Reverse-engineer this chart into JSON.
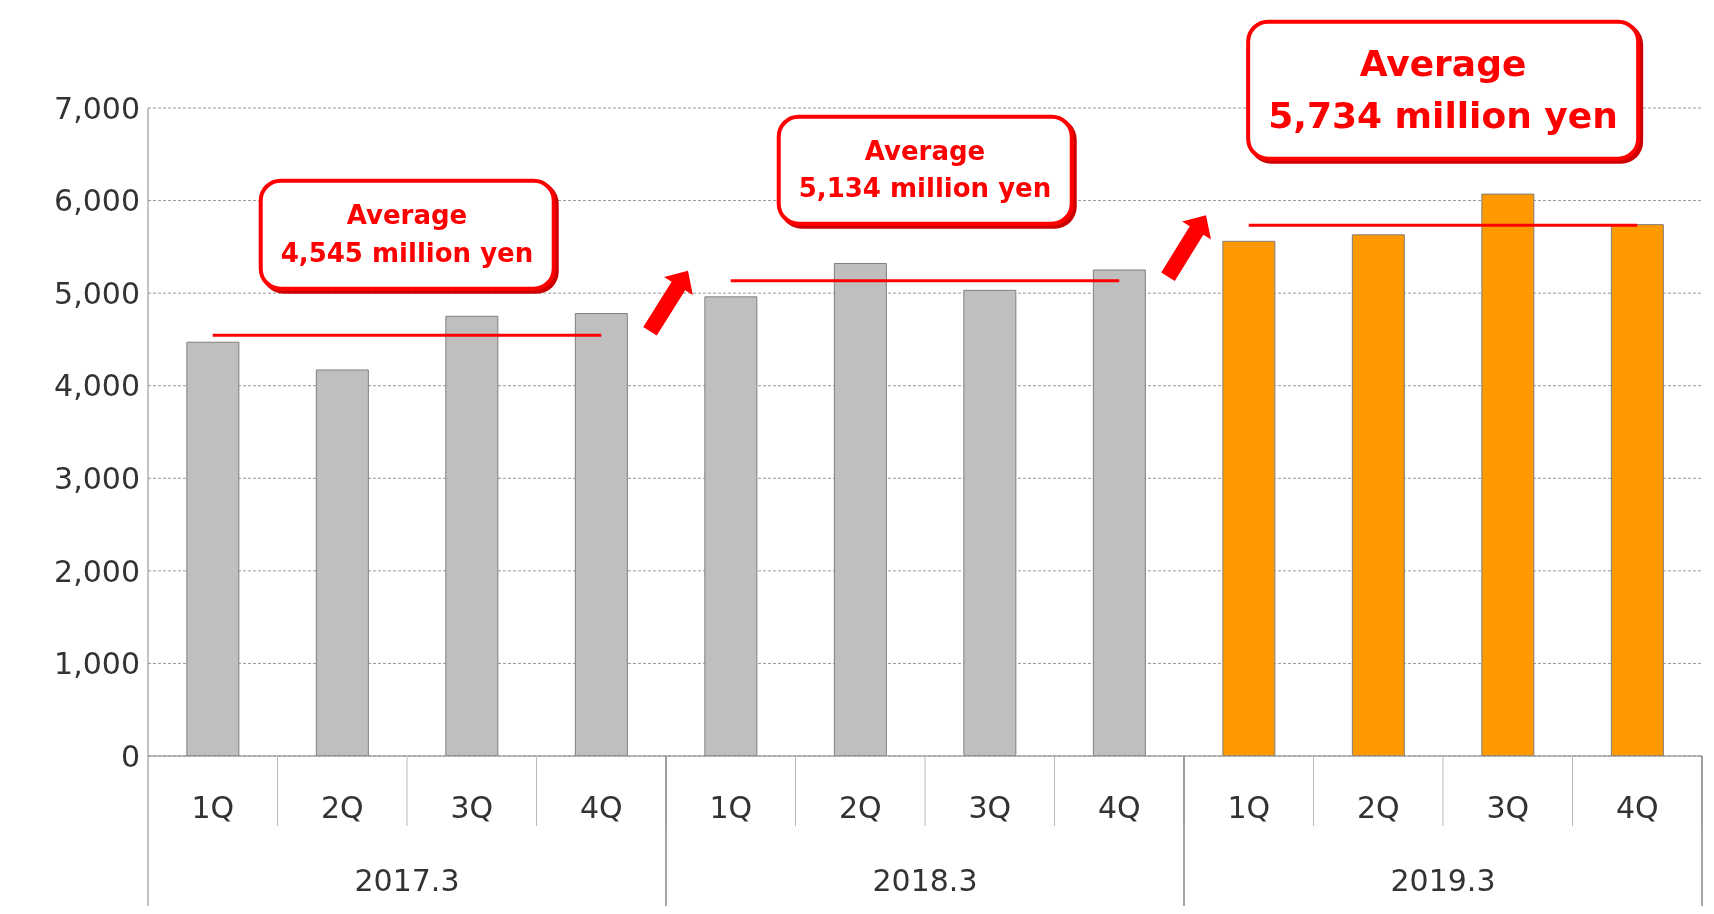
{
  "chart_data": {
    "type": "bar",
    "categories": [
      "1Q",
      "2Q",
      "3Q",
      "4Q",
      "1Q",
      "2Q",
      "3Q",
      "4Q",
      "1Q",
      "2Q",
      "3Q",
      "4Q"
    ],
    "series": [
      {
        "colors": [
          "#bfbfbf",
          "#bfbfbf",
          "#bfbfbf",
          "#bfbfbf",
          "#bfbfbf",
          "#bfbfbf",
          "#bfbfbf",
          "#bfbfbf",
          "#ff9900",
          "#ff9900",
          "#ff9900",
          "#ff9900"
        ],
        "values": [
          4470,
          4170,
          4750,
          4780,
          4960,
          5320,
          5030,
          5250,
          5560,
          5630,
          6070,
          5740
        ]
      },
      {
        "type": "line",
        "color": "#ff0000",
        "values": [
          4545,
          4545,
          4545,
          4545,
          null,
          null,
          null,
          null,
          null,
          null,
          null,
          null
        ]
      },
      {
        "type": "line",
        "color": "#ff0000",
        "values": [
          null,
          null,
          null,
          null,
          5134,
          5134,
          5134,
          5134,
          null,
          null,
          null,
          null
        ]
      },
      {
        "type": "line",
        "color": "#ff0000",
        "values": [
          null,
          null,
          null,
          null,
          null,
          null,
          null,
          null,
          5734,
          5734,
          5734,
          5734
        ]
      }
    ],
    "ylim": [
      0,
      7000
    ],
    "yticks": [
      0,
      {
        "value": 1000,
        "label": "1,000"
      },
      {
        "value": 2000,
        "label": "2,000"
      },
      {
        "value": 3000,
        "label": "3,000"
      },
      {
        "value": 4000,
        "label": "4,000"
      },
      {
        "value": 5000,
        "label": "5,000"
      },
      {
        "value": 6000,
        "label": "6,000"
      },
      {
        "value": 7000,
        "label": "7,000"
      }
    ],
    "grid": "y",
    "marker": "none",
    "line_style": "solid",
    "annotations": [
      "Average 4,545 million yen",
      "Average 5,134 million yen",
      "Average 5,734 million yen",
      "2017.3",
      "2018.3",
      "2019.3"
    ]
  }
}
